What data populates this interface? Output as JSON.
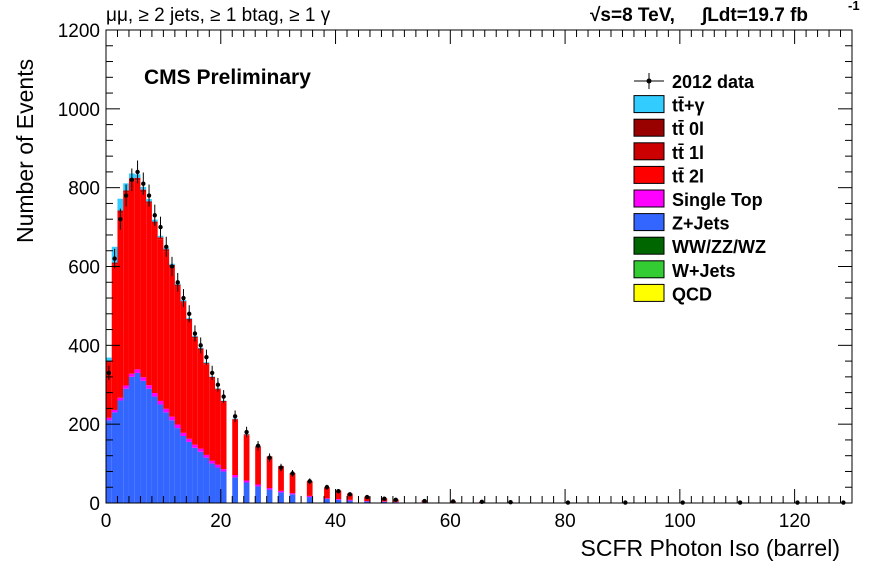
{
  "header": {
    "left": "μμ, ≥ 2 jets, ≥ 1 btag, ≥ 1 γ",
    "energy": "√s=8 TeV,",
    "lumi": "∫Ldt=19.7 fb",
    "lumi_exp": "-1"
  },
  "cms_label": "CMS Preliminary",
  "chart_data": {
    "type": "area",
    "style": "stacked-histogram",
    "xlabel": "SCFR Photon Iso (barrel)",
    "ylabel": "Number of Events",
    "xlim": [
      0,
      130
    ],
    "ylim": [
      0,
      1200
    ],
    "xticks": [
      0,
      20,
      40,
      60,
      80,
      100,
      120
    ],
    "yticks": [
      0,
      200,
      400,
      600,
      800,
      1000,
      1200
    ],
    "grid": false,
    "legend_position": "top-right",
    "legend": [
      {
        "label": "2012 data",
        "color": "#000000",
        "marker": "point"
      },
      {
        "label": "tt̄+γ",
        "color": "#33ccff"
      },
      {
        "label": "tt̄ 0l",
        "color": "#990000"
      },
      {
        "label": "tt̄ 1l",
        "color": "#cc0000"
      },
      {
        "label": "tt̄ 2l",
        "color": "#ff0000"
      },
      {
        "label": "Single Top",
        "color": "#ff00ff"
      },
      {
        "label": "Z+Jets",
        "color": "#3366ff"
      },
      {
        "label": "WW/ZZ/WZ",
        "color": "#006600"
      },
      {
        "label": "W+Jets",
        "color": "#33cc33"
      },
      {
        "label": "QCD",
        "color": "#ffff00"
      }
    ],
    "bin_width": 1,
    "x": [
      0,
      1,
      2,
      3,
      4,
      5,
      6,
      7,
      8,
      9,
      10,
      11,
      12,
      13,
      14,
      15,
      16,
      17,
      18,
      19,
      20,
      22,
      24,
      26,
      28,
      30,
      32,
      35,
      38,
      40,
      42,
      45,
      48,
      50,
      55,
      60,
      65,
      70,
      80,
      90,
      100,
      110,
      120,
      128
    ],
    "series": [
      {
        "name": "Z+Jets",
        "values": [
          210,
          230,
          260,
          290,
          320,
          330,
          310,
          290,
          270,
          250,
          230,
          210,
          190,
          170,
          155,
          140,
          130,
          115,
          100,
          90,
          80,
          65,
          52,
          42,
          34,
          27,
          22,
          15,
          10,
          8,
          6,
          4,
          3,
          2,
          1.5,
          1,
          0.6,
          0.3,
          0.2,
          0.1,
          0.05,
          0,
          0,
          0
        ]
      },
      {
        "name": "Single Top",
        "values": [
          6,
          6,
          7,
          8,
          8,
          9,
          9,
          9,
          9,
          9,
          9,
          9,
          9,
          8,
          8,
          8,
          8,
          7,
          7,
          7,
          6,
          6,
          5,
          5,
          4,
          4,
          3,
          3,
          2,
          2,
          2,
          1,
          1,
          1,
          1,
          0.5,
          0.3,
          0.2,
          0.1,
          0,
          0,
          0,
          0,
          0
        ]
      },
      {
        "name": "tt̄ 2l",
        "values": [
          140,
          370,
          470,
          490,
          490,
          480,
          470,
          460,
          430,
          410,
          400,
          380,
          350,
          330,
          300,
          270,
          250,
          230,
          210,
          190,
          170,
          140,
          115,
          95,
          78,
          62,
          50,
          37,
          27,
          21,
          16,
          11,
          8,
          6,
          4,
          3,
          2,
          1.5,
          0.8,
          0.4,
          0.2,
          0.1,
          0,
          0
        ]
      },
      {
        "name": "tt̄ 1l",
        "values": [
          3,
          4,
          5,
          5,
          6,
          6,
          6,
          6,
          5,
          5,
          5,
          5,
          5,
          4,
          4,
          4,
          4,
          3,
          3,
          3,
          3,
          2,
          2,
          2,
          2,
          1,
          1,
          1,
          1,
          1,
          0,
          0,
          0,
          0,
          0,
          0,
          0,
          0,
          0,
          0,
          0,
          0,
          0,
          0
        ]
      },
      {
        "name": "tt̄+γ",
        "values": [
          10,
          40,
          30,
          18,
          12,
          9,
          7,
          6,
          5,
          4,
          4,
          3,
          3,
          3,
          2,
          2,
          2,
          2,
          1,
          1,
          1,
          1,
          1,
          1,
          0,
          0,
          0,
          0,
          0,
          0,
          0,
          0,
          0,
          0,
          0,
          0,
          0,
          0,
          0,
          0,
          0,
          0,
          0,
          0
        ]
      },
      {
        "name": "2012 data",
        "values": [
          330,
          620,
          720,
          780,
          820,
          840,
          810,
          780,
          730,
          700,
          650,
          600,
          560,
          520,
          480,
          430,
          400,
          370,
          330,
          300,
          270,
          220,
          180,
          145,
          115,
          90,
          75,
          55,
          40,
          30,
          22,
          15,
          11,
          8,
          5,
          4,
          3,
          2,
          1,
          1,
          1,
          1,
          1,
          1
        ]
      }
    ]
  }
}
